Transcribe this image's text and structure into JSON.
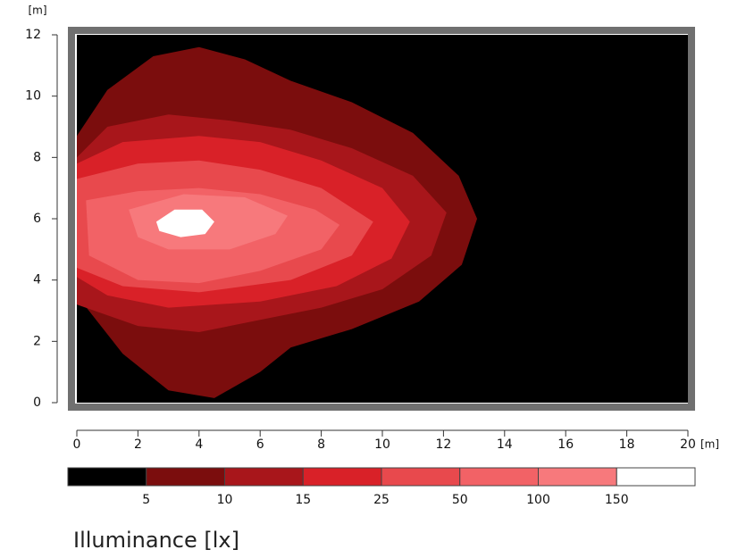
{
  "chart_data": {
    "type": "contour",
    "title": "Illuminance [lx]",
    "x_label": "[m]",
    "y_label": "[m]",
    "xlim": [
      0,
      20
    ],
    "ylim": [
      0,
      12
    ],
    "xticks": [
      0,
      2,
      4,
      6,
      8,
      10,
      12,
      14,
      16,
      18,
      20
    ],
    "yticks": [
      0,
      2,
      4,
      6,
      8,
      10,
      12
    ],
    "levels": [
      5,
      10,
      15,
      25,
      50,
      100,
      150
    ],
    "colors": [
      "#000000",
      "#7b0d0d",
      "#a8161b",
      "#d92128",
      "#e8494d",
      "#f26266",
      "#f7797c",
      "#ffffff"
    ],
    "contours": [
      {
        "x": [
          0,
          1,
          2.5,
          4,
          5.5,
          7,
          9,
          11,
          12.5,
          13.1,
          12.6,
          11.2,
          9,
          7,
          6,
          4.5,
          3,
          1.5,
          0
        ],
        "y": [
          8.7,
          10.2,
          11.3,
          11.6,
          11.2,
          10.5,
          9.8,
          8.8,
          7.4,
          6,
          4.5,
          3.3,
          2.4,
          1.8,
          1,
          0.15,
          0.4,
          1.6,
          3.5
        ]
      },
      {
        "x": [
          0,
          1,
          3,
          5,
          7,
          9,
          11,
          12.1,
          11.6,
          10,
          8,
          6,
          4,
          2,
          0
        ],
        "y": [
          8,
          9,
          9.4,
          9.2,
          8.9,
          8.3,
          7.4,
          6.2,
          4.8,
          3.7,
          3.1,
          2.7,
          2.3,
          2.5,
          3.2
        ]
      },
      {
        "x": [
          0,
          1.5,
          4,
          6,
          8,
          10,
          10.9,
          10.3,
          8.5,
          6,
          3,
          1,
          0
        ],
        "y": [
          7.8,
          8.5,
          8.7,
          8.5,
          7.9,
          7,
          5.9,
          4.7,
          3.8,
          3.3,
          3.1,
          3.5,
          4.1
        ]
      },
      {
        "x": [
          0,
          2,
          4,
          6,
          8,
          9.7,
          9,
          7,
          4,
          1.5,
          0
        ],
        "y": [
          7.3,
          7.8,
          7.9,
          7.6,
          7,
          5.9,
          4.8,
          4,
          3.6,
          3.8,
          4.4
        ]
      },
      {
        "x": [
          0.3,
          2,
          4,
          6,
          7.8,
          8.6,
          8,
          6,
          4,
          2,
          0.4
        ],
        "y": [
          6.6,
          6.9,
          7,
          6.8,
          6.3,
          5.8,
          5,
          4.3,
          3.9,
          4,
          4.8
        ]
      },
      {
        "x": [
          1.7,
          3.5,
          5.5,
          6.9,
          6.5,
          5,
          3,
          2
        ],
        "y": [
          6.3,
          6.8,
          6.7,
          6.1,
          5.5,
          5,
          5,
          5.4
        ]
      },
      {
        "x": [
          2.6,
          3.2,
          4.1,
          4.5,
          4.2,
          3.4,
          2.7
        ],
        "y": [
          5.9,
          6.3,
          6.3,
          5.9,
          5.5,
          5.4,
          5.6
        ]
      }
    ]
  }
}
